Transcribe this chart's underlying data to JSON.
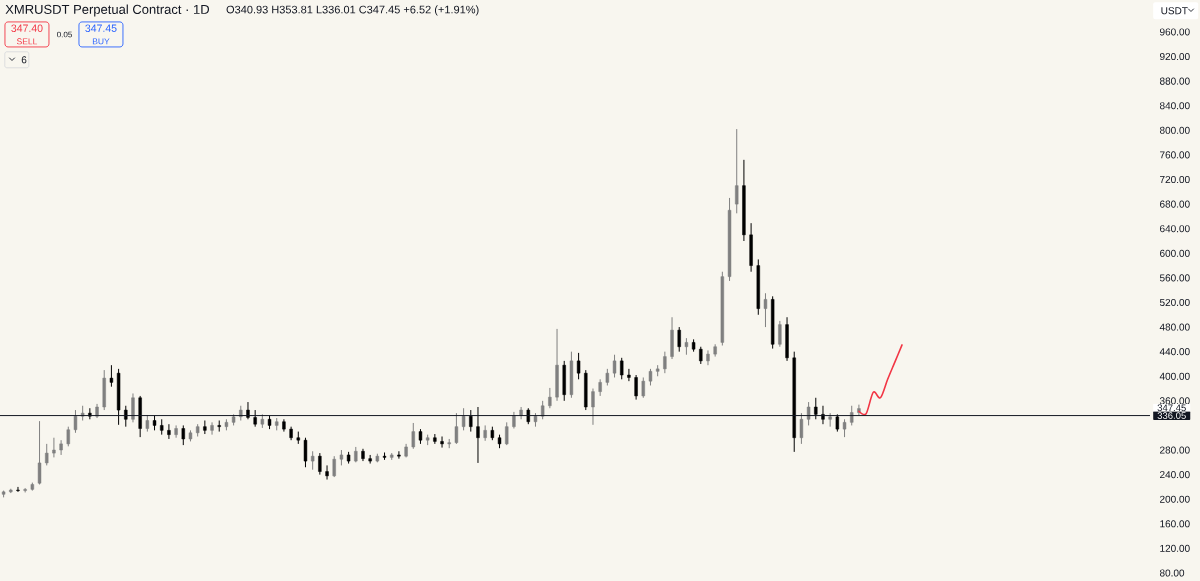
{
  "chart_data": {
    "type": "candlestick",
    "title": "XMRUSDT Perpetual Contract · 1D",
    "subtitle": "O340.93 H353.81 L336.01 C347.45 +6.52 (+1.91%)",
    "ylabel": "USDT",
    "categories": [
      null,
      null,
      null,
      null,
      null,
      null,
      null,
      null,
      null,
      null,
      null,
      null,
      null,
      null,
      null,
      null,
      null,
      null,
      null,
      null,
      null,
      null,
      null,
      null,
      null,
      null,
      null,
      null,
      null,
      null,
      null,
      null,
      null,
      null,
      null,
      null,
      null,
      null,
      null,
      null,
      null,
      null,
      null,
      null,
      null,
      null,
      null,
      null,
      null,
      null,
      null,
      null,
      null,
      null,
      null,
      null,
      null,
      null,
      null,
      null,
      null,
      null,
      null,
      null,
      null,
      null,
      null,
      null,
      null,
      null,
      null,
      null,
      null,
      null,
      null,
      null,
      null,
      null,
      null,
      null,
      null,
      null,
      null,
      null,
      null,
      null,
      null,
      null,
      null,
      null,
      null,
      null,
      null,
      null,
      null,
      null,
      null,
      null,
      null,
      null,
      null,
      null,
      null,
      null,
      null,
      null,
      null,
      null,
      null,
      null,
      null,
      null,
      null,
      null,
      null,
      null,
      null,
      null,
      null,
      null,
      null,
      null,
      null,
      null,
      null,
      null,
      null,
      null,
      null,
      null,
      null,
      null,
      null,
      null,
      null,
      null,
      null,
      null,
      null,
      null,
      null,
      null,
      null,
      null,
      null,
      null,
      null,
      null,
      null,
      null,
      null,
      null,
      null,
      null,
      null,
      null,
      null,
      null,
      null,
      null
    ],
    "ohlc": [
      [
        208,
        214,
        203,
        212
      ],
      [
        212,
        217,
        210,
        215
      ],
      [
        215,
        220,
        212,
        214
      ],
      [
        214,
        218,
        211,
        216
      ],
      [
        216,
        227,
        214,
        224
      ],
      [
        226,
        327,
        224,
        259
      ],
      [
        259,
        290,
        255,
        275
      ],
      [
        275,
        300,
        268,
        280
      ],
      [
        280,
        296,
        272,
        290
      ],
      [
        290,
        318,
        286,
        313
      ],
      [
        313,
        345,
        308,
        335
      ],
      [
        335,
        352,
        328,
        340
      ],
      [
        340,
        348,
        330,
        335
      ],
      [
        335,
        355,
        332,
        350
      ],
      [
        350,
        410,
        345,
        397
      ],
      [
        397,
        418,
        383,
        390
      ],
      [
        405,
        412,
        321,
        345
      ],
      [
        345,
        352,
        318,
        330
      ],
      [
        330,
        372,
        325,
        365
      ],
      [
        365,
        368,
        301,
        315
      ],
      [
        315,
        337,
        310,
        328
      ],
      [
        328,
        336,
        312,
        320
      ],
      [
        320,
        330,
        305,
        312
      ],
      [
        312,
        322,
        298,
        305
      ],
      [
        305,
        320,
        300,
        315
      ],
      [
        315,
        320,
        288,
        298
      ],
      [
        298,
        312,
        294,
        308
      ],
      [
        308,
        322,
        302,
        318
      ],
      [
        318,
        328,
        306,
        312
      ],
      [
        312,
        325,
        305,
        320
      ],
      [
        320,
        328,
        310,
        318
      ],
      [
        318,
        330,
        312,
        325
      ],
      [
        325,
        338,
        320,
        334
      ],
      [
        334,
        352,
        328,
        345
      ],
      [
        345,
        358,
        330,
        333
      ],
      [
        333,
        345,
        318,
        322
      ],
      [
        322,
        338,
        316,
        330
      ],
      [
        330,
        336,
        314,
        320
      ],
      [
        320,
        332,
        312,
        326
      ],
      [
        326,
        330,
        310,
        314
      ],
      [
        314,
        318,
        296,
        300
      ],
      [
        300,
        310,
        290,
        296
      ],
      [
        296,
        300,
        252,
        262
      ],
      [
        262,
        278,
        248,
        270
      ],
      [
        270,
        275,
        240,
        245
      ],
      [
        245,
        255,
        232,
        238
      ],
      [
        238,
        270,
        236,
        265
      ],
      [
        265,
        280,
        255,
        272
      ],
      [
        272,
        277,
        258,
        262
      ],
      [
        262,
        285,
        260,
        278
      ],
      [
        278,
        282,
        262,
        266
      ],
      [
        266,
        272,
        258,
        262
      ],
      [
        262,
        274,
        260,
        270
      ],
      [
        270,
        276,
        264,
        268
      ],
      [
        268,
        275,
        264,
        272
      ],
      [
        272,
        278,
        266,
        270
      ],
      [
        270,
        290,
        268,
        285
      ],
      [
        285,
        324,
        282,
        310
      ],
      [
        310,
        314,
        290,
        296
      ],
      [
        296,
        305,
        288,
        300
      ],
      [
        300,
        306,
        290,
        294
      ],
      [
        294,
        302,
        284,
        290
      ],
      [
        290,
        298,
        283,
        292
      ],
      [
        292,
        340,
        290,
        318
      ],
      [
        318,
        348,
        312,
        335
      ],
      [
        335,
        345,
        310,
        318
      ],
      [
        318,
        350,
        259,
        300
      ],
      [
        300,
        320,
        295,
        312
      ],
      [
        312,
        318,
        296,
        300
      ],
      [
        300,
        305,
        283,
        290
      ],
      [
        290,
        325,
        288,
        318
      ],
      [
        318,
        342,
        315,
        336
      ],
      [
        336,
        350,
        330,
        345
      ],
      [
        345,
        348,
        322,
        326
      ],
      [
        326,
        340,
        318,
        335
      ],
      [
        335,
        360,
        330,
        352
      ],
      [
        352,
        381,
        348,
        366
      ],
      [
        366,
        477,
        360,
        418
      ],
      [
        418,
        425,
        360,
        370
      ],
      [
        370,
        440,
        365,
        425
      ],
      [
        425,
        438,
        395,
        405
      ],
      [
        405,
        410,
        345,
        350
      ],
      [
        350,
        380,
        321,
        375
      ],
      [
        375,
        395,
        368,
        390
      ],
      [
        390,
        412,
        385,
        405
      ],
      [
        405,
        435,
        398,
        425
      ],
      [
        425,
        430,
        395,
        402
      ],
      [
        402,
        412,
        392,
        398
      ],
      [
        398,
        402,
        362,
        368
      ],
      [
        368,
        398,
        365,
        392
      ],
      [
        392,
        412,
        385,
        408
      ],
      [
        408,
        418,
        400,
        412
      ],
      [
        412,
        440,
        405,
        432
      ],
      [
        432,
        496,
        428,
        475
      ],
      [
        475,
        480,
        440,
        448
      ],
      [
        448,
        462,
        435,
        455
      ],
      [
        455,
        460,
        440,
        444
      ],
      [
        444,
        448,
        420,
        425
      ],
      [
        425,
        442,
        418,
        436
      ],
      [
        436,
        452,
        432,
        448
      ],
      [
        455,
        570,
        450,
        562
      ],
      [
        562,
        690,
        555,
        670
      ],
      [
        680,
        802,
        665,
        710
      ],
      [
        710,
        752,
        620,
        630
      ],
      [
        630,
        649,
        570,
        580
      ],
      [
        580,
        590,
        500,
        510
      ],
      [
        510,
        535,
        480,
        525
      ],
      [
        525,
        530,
        445,
        452
      ],
      [
        452,
        490,
        448,
        484
      ],
      [
        484,
        496,
        425,
        430
      ],
      [
        430,
        440,
        277,
        300
      ],
      [
        300,
        340,
        290,
        330
      ],
      [
        330,
        358,
        320,
        350
      ],
      [
        350,
        365,
        330,
        338
      ],
      [
        338,
        352,
        322,
        330
      ],
      [
        330,
        340,
        318,
        334
      ],
      [
        334,
        338,
        310,
        314
      ],
      [
        314,
        330,
        301,
        325
      ],
      [
        325,
        352,
        320,
        341
      ],
      [
        340.93,
        353.81,
        336.01,
        347.45
      ],
      null,
      null,
      null,
      null,
      null,
      null,
      null,
      null,
      null,
      null,
      null,
      null,
      null,
      null,
      null,
      null,
      null,
      null,
      null,
      null,
      null,
      null,
      null,
      null,
      null,
      null,
      null,
      null,
      null,
      null,
      null,
      null,
      null,
      null,
      null,
      null,
      null,
      null,
      null,
      null
    ],
    "colors": [
      "#808080",
      "#808080",
      "#000000",
      "#808080",
      "#808080",
      "#808080",
      "#808080",
      "#808080",
      "#808080",
      "#808080",
      "#808080",
      "#808080",
      "#000000",
      "#808080",
      "#808080",
      "#000000",
      "#000000",
      "#000000",
      "#808080",
      "#000000",
      "#808080",
      "#000000",
      "#000000",
      "#000000",
      "#808080",
      "#000000",
      "#808080",
      "#808080",
      "#000000",
      "#808080",
      "#000000",
      "#808080",
      "#808080",
      "#808080",
      "#000000",
      "#000000",
      "#808080",
      "#000000",
      "#808080",
      "#000000",
      "#000000",
      "#000000",
      "#000000",
      "#808080",
      "#000000",
      "#000000",
      "#808080",
      "#808080",
      "#000000",
      "#808080",
      "#000000",
      "#000000",
      "#808080",
      "#000000",
      "#808080",
      "#000000",
      "#808080",
      "#808080",
      "#000000",
      "#808080",
      "#000000",
      "#000000",
      "#808080",
      "#808080",
      "#808080",
      "#000000",
      "#000000",
      "#808080",
      "#000000",
      "#000000",
      "#808080",
      "#808080",
      "#808080",
      "#000000",
      "#808080",
      "#808080",
      "#808080",
      "#808080",
      "#000000",
      "#808080",
      "#000000",
      "#000000",
      "#808080",
      "#808080",
      "#808080",
      "#808080",
      "#000000",
      "#000000",
      "#000000",
      "#808080",
      "#808080",
      "#808080",
      "#808080",
      "#808080",
      "#000000",
      "#808080",
      "#000000",
      "#000000",
      "#808080",
      "#808080",
      "#808080",
      "#808080",
      "#808080",
      "#000000",
      "#000000",
      "#000000",
      "#808080",
      "#000000",
      "#808080",
      "#000000",
      "#000000",
      "#808080",
      "#808080",
      "#000000",
      "#000000",
      "#808080",
      "#000000",
      "#808080",
      "#808080",
      "#808080",
      null,
      null,
      null,
      null,
      null,
      null,
      null,
      null,
      null,
      null,
      null,
      null,
      null,
      null,
      null,
      null,
      null,
      null,
      null,
      null,
      null,
      null,
      null,
      null,
      null,
      null,
      null,
      null,
      null,
      null,
      null,
      null,
      null,
      null,
      null,
      null,
      null,
      null,
      null,
      null
    ],
    "series": [
      {
        "type": "line",
        "color": "#f23645",
        "values": [
          null,
          null,
          null,
          null,
          null,
          null,
          null,
          null,
          null,
          null,
          null,
          null,
          null,
          null,
          null,
          null,
          null,
          null,
          null,
          null,
          null,
          null,
          null,
          null,
          null,
          null,
          null,
          null,
          null,
          null,
          null,
          null,
          null,
          null,
          null,
          null,
          null,
          null,
          null,
          null,
          null,
          null,
          null,
          null,
          null,
          null,
          null,
          null,
          null,
          null,
          null,
          null,
          null,
          null,
          null,
          null,
          null,
          null,
          null,
          null,
          null,
          null,
          null,
          null,
          null,
          null,
          null,
          null,
          null,
          null,
          null,
          null,
          null,
          null,
          null,
          null,
          null,
          null,
          null,
          null,
          null,
          null,
          null,
          null,
          null,
          null,
          null,
          null,
          null,
          null,
          null,
          null,
          null,
          null,
          null,
          null,
          null,
          null,
          null,
          null,
          null,
          null,
          null,
          null,
          null,
          null,
          null,
          null,
          null,
          null,
          null,
          null,
          null,
          null,
          null,
          null,
          null,
          null,
          null,
          343,
          339,
          374,
          365,
          395,
          423,
          451,
          null,
          null,
          null,
          null,
          null,
          null,
          null,
          null,
          null,
          null,
          null,
          null,
          null,
          null,
          null,
          null,
          null,
          null,
          null,
          null,
          null,
          null,
          null,
          null,
          null,
          null,
          null,
          null,
          null,
          null,
          null,
          null,
          null,
          null
        ]
      }
    ],
    "ylim": [
      67,
      1012
    ],
    "yticks": [
      {
        "value": 80,
        "label": "80.00"
      },
      {
        "value": 120,
        "label": "120.00"
      },
      {
        "value": 160,
        "label": "160.00"
      },
      {
        "value": 200,
        "label": "200.00"
      },
      {
        "value": 240,
        "label": "240.00"
      },
      {
        "value": 280,
        "label": "280.00"
      },
      {
        "value": 360,
        "label": "360.00"
      },
      {
        "value": 400,
        "label": "400.00"
      },
      {
        "value": 440,
        "label": "440.00"
      },
      {
        "value": 480,
        "label": "480.00"
      },
      {
        "value": 520,
        "label": "520.00"
      },
      {
        "value": 560,
        "label": "560.00"
      },
      {
        "value": 600,
        "label": "600.00"
      },
      {
        "value": 640,
        "label": "640.00"
      },
      {
        "value": 680,
        "label": "680.00"
      },
      {
        "value": 720,
        "label": "720.00"
      },
      {
        "value": 760,
        "label": "760.00"
      },
      {
        "value": 800,
        "label": "800.00"
      },
      {
        "value": 840,
        "label": "840.00"
      },
      {
        "value": 880,
        "label": "880.00"
      },
      {
        "value": 920,
        "label": "920.00"
      },
      {
        "value": 960,
        "label": "960.00"
      }
    ],
    "tick_labels": "y",
    "ref_lines": [
      {
        "axis": "y",
        "value": 336.05,
        "label": "336.05",
        "color": "#131722"
      }
    ],
    "annotations": [
      "347.40",
      "SELL",
      "0.05",
      "347.45",
      "BUY",
      "6",
      "347.45"
    ]
  }
}
